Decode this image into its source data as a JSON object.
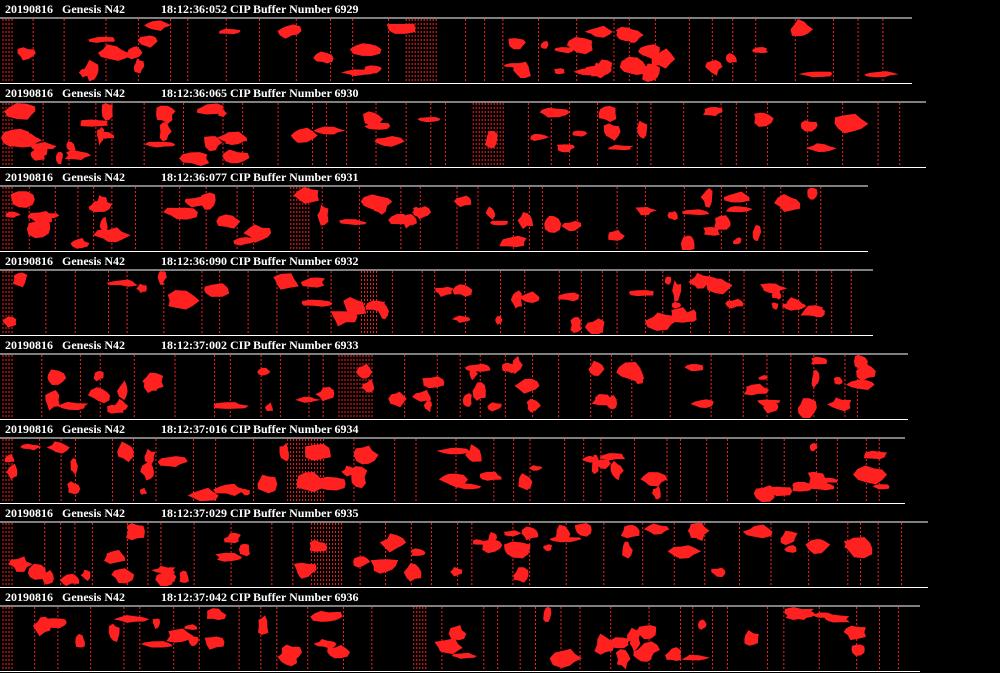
{
  "buffers": [
    {
      "date": "20190816",
      "platform": "Genesis N42",
      "time": "18:12:36:052",
      "caption": "CIP Buffer Number 6929"
    },
    {
      "date": "20190816",
      "platform": "Genesis N42",
      "time": "18:12:36:065",
      "caption": "CIP Buffer Number 6930"
    },
    {
      "date": "20190816",
      "platform": "Genesis N42",
      "time": "18:12:36:077",
      "caption": "CIP Buffer Number 6931"
    },
    {
      "date": "20190816",
      "platform": "Genesis N42",
      "time": "18:12:36:090",
      "caption": "CIP Buffer Number 6932"
    },
    {
      "date": "20190816",
      "platform": "Genesis N42",
      "time": "18:12:37:002",
      "caption": "CIP Buffer Number 6933"
    },
    {
      "date": "20190816",
      "platform": "Genesis N42",
      "time": "18:12:37:016",
      "caption": "CIP Buffer Number 6934"
    },
    {
      "date": "20190816",
      "platform": "Genesis N42",
      "time": "18:12:37:029",
      "caption": "CIP Buffer Number 6935"
    },
    {
      "date": "20190816",
      "platform": "Genesis N42",
      "time": "18:12:37:042",
      "caption": "CIP Buffer Number 6936"
    }
  ]
}
